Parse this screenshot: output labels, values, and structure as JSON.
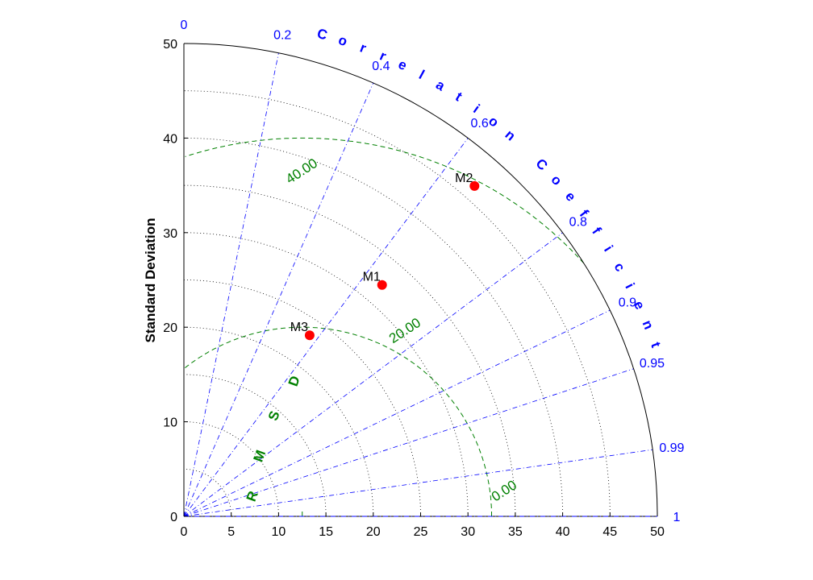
{
  "chart_data": {
    "type": "scatter",
    "subtype": "taylor-diagram",
    "ylabel": "Standard Deviation",
    "arc_label": "Correlation Coefficient",
    "rmsd_label": "RMSD",
    "std_ticks": [
      "0",
      "5",
      "10",
      "15",
      "20",
      "25",
      "30",
      "35",
      "40",
      "45",
      "50"
    ],
    "y_ticks": [
      "0",
      "10",
      "20",
      "30",
      "40",
      "50"
    ],
    "std_max": 50,
    "correlation_ticks": [
      "0",
      "0.2",
      "0.4",
      "0.6",
      "0.8",
      "0.9",
      "0.95",
      "0.99",
      "1"
    ],
    "correlation_values": [
      0,
      0.2,
      0.4,
      0.6,
      0.8,
      0.9,
      0.95,
      0.99,
      1
    ],
    "reference_std": 12.5,
    "rmsd_contours": [
      {
        "value": 0,
        "label": "0.00"
      },
      {
        "value": 20,
        "label": "20.00"
      },
      {
        "value": 40,
        "label": "40.00"
      }
    ],
    "points": [
      {
        "name": "M1",
        "std": 32.2,
        "corr": 0.65
      },
      {
        "name": "M2",
        "std": 46.5,
        "corr": 0.66
      },
      {
        "name": "M3",
        "std": 23.3,
        "corr": 0.57
      }
    ],
    "colors": {
      "correlation": "#0000ff",
      "rmsd": "#008000",
      "grid": "#000000",
      "points": "#ff0000"
    }
  }
}
